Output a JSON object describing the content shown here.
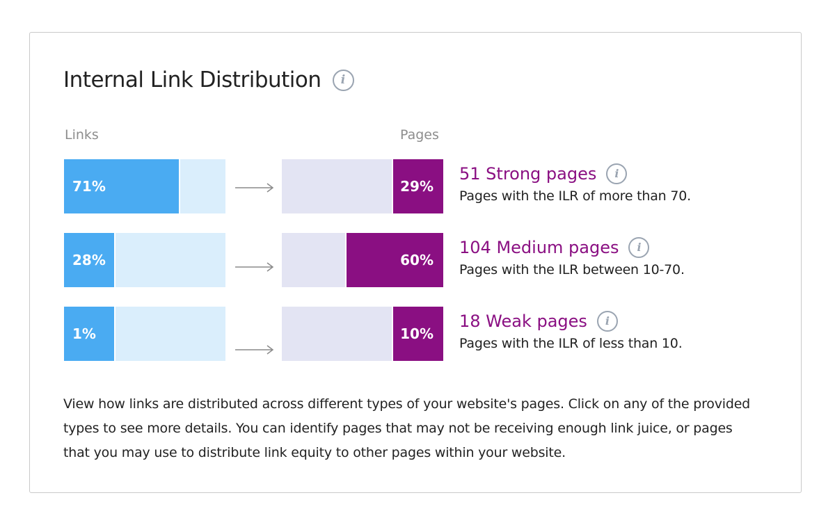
{
  "widget": {
    "title": "Internal Link Distribution",
    "info_icon": "info-icon",
    "links_label": "Links",
    "pages_label": "Pages",
    "colors": {
      "links_fill": "#4aabf2",
      "links_track": "#daeefc",
      "pages_fill": "#8a0f82",
      "pages_track": "#e3e4f3",
      "accent_text": "#8a0f82"
    },
    "rows": [
      {
        "links_pct": "71%",
        "links_value": 0.71,
        "pages_pct": "29%",
        "pages_value": 0.29,
        "title": "51 Strong pages",
        "subtitle": "Pages with the ILR of more than 70."
      },
      {
        "links_pct": "28%",
        "links_value": 0.28,
        "pages_pct": "60%",
        "pages_value": 0.6,
        "title": "104 Medium pages",
        "subtitle": "Pages with the ILR between 10-70."
      },
      {
        "links_pct": "1%",
        "links_value": 0.01,
        "pages_pct": "10%",
        "pages_value": 0.1,
        "title": "18 Weak pages",
        "subtitle": "Pages with the ILR of less than 10."
      }
    ],
    "footer": "View how links are distributed across different types of your website's pages. Click on any of the provided types to see more details. You can identify pages that may not be receiving enough link juice, or pages that you may use to distribute link equity to other pages within your website."
  }
}
